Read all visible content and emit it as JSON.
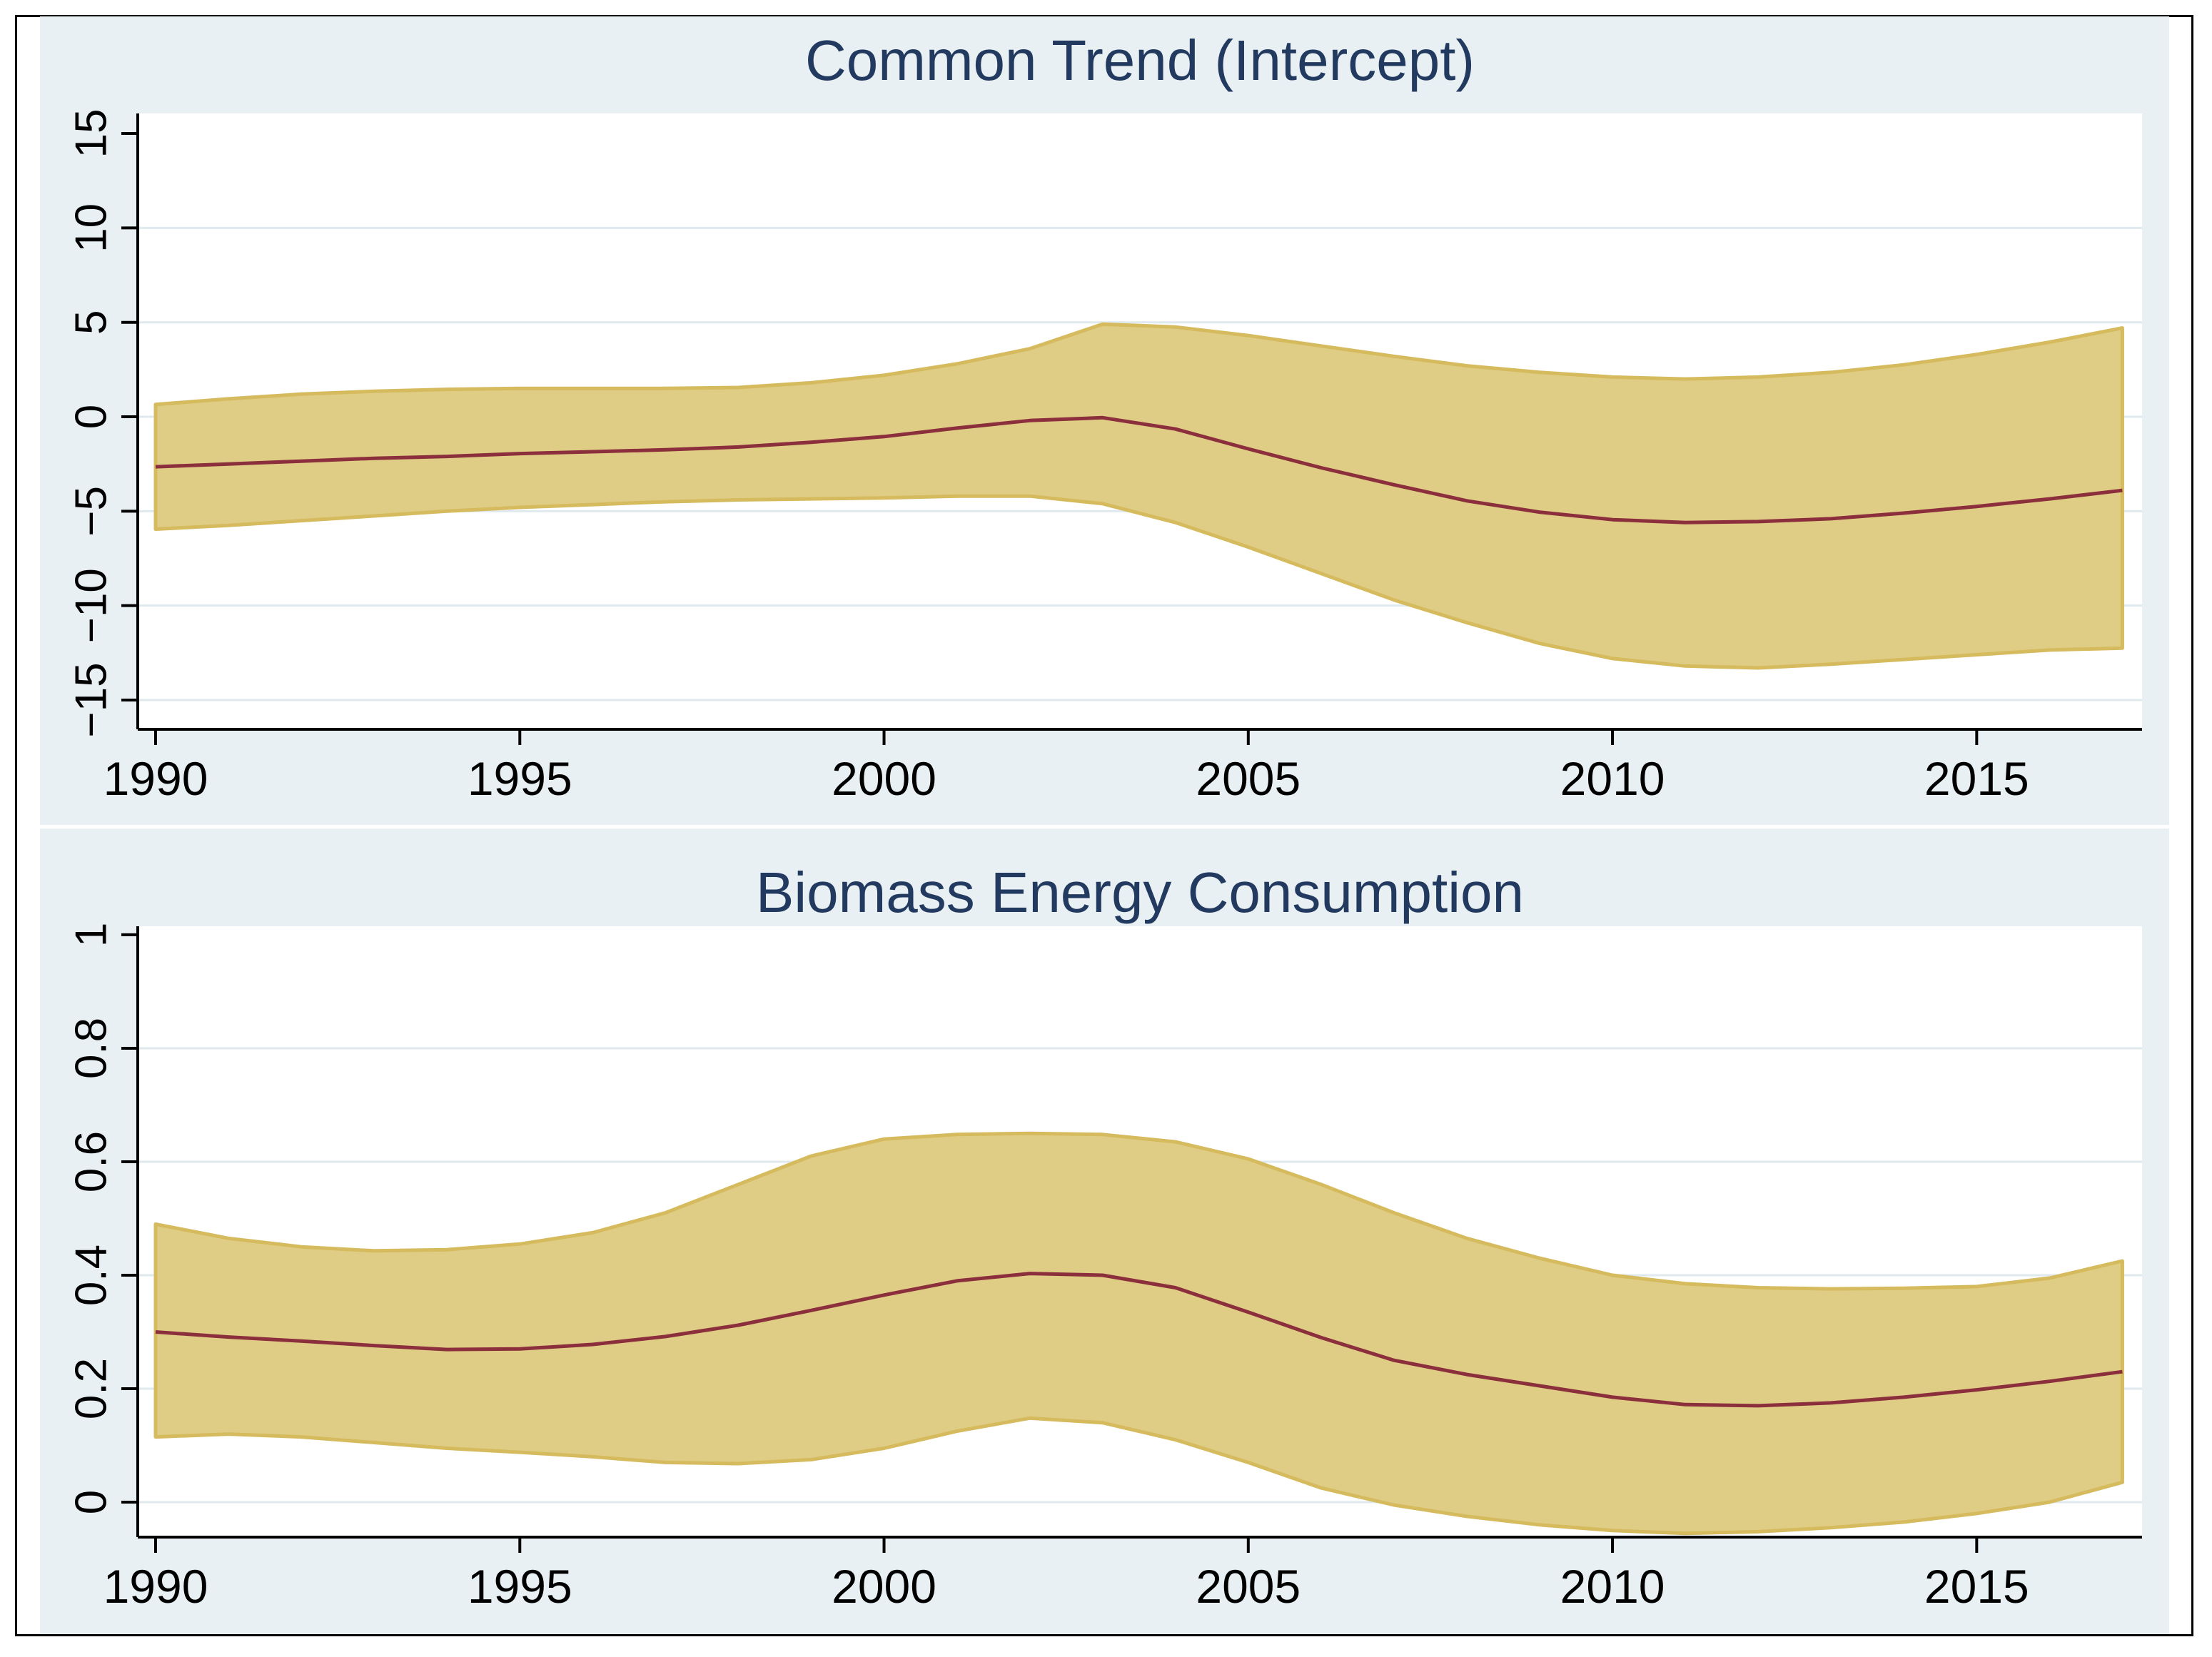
{
  "colors": {
    "page_bg": "#ffffff",
    "frame_border": "#000000",
    "panel_bg": "#e9f0f3",
    "plot_bg": "#ffffff",
    "gridline": "#dfe9ee",
    "axis": "#000000",
    "band_fill": "#e0cd85",
    "band_edge": "#d5ba5e",
    "mean_line": "#8b2f3d",
    "title_text": "#233a60",
    "tick_text": "#000000"
  },
  "chart_data": [
    {
      "type": "area",
      "title": "Common Trend (Intercept)",
      "xlabel": "",
      "ylabel": "",
      "legend": false,
      "grid": true,
      "x": [
        1990,
        1991,
        1992,
        1993,
        1994,
        1995,
        1996,
        1997,
        1998,
        1999,
        2000,
        2001,
        2002,
        2003,
        2004,
        2005,
        2006,
        2007,
        2008,
        2009,
        2010,
        2011,
        2012,
        2013,
        2014,
        2015,
        2016,
        2017
      ],
      "series": [
        {
          "name": "mean",
          "values": [
            -2.65,
            -2.5,
            -2.35,
            -2.2,
            -2.1,
            -1.95,
            -1.85,
            -1.75,
            -1.6,
            -1.35,
            -1.05,
            -0.6,
            -0.2,
            -0.05,
            -0.65,
            -1.7,
            -2.7,
            -3.6,
            -4.45,
            -5.05,
            -5.45,
            -5.6,
            -5.55,
            -5.4,
            -5.1,
            -4.75,
            -4.35,
            -3.9
          ]
        },
        {
          "name": "upper_ci",
          "values": [
            0.65,
            0.95,
            1.2,
            1.35,
            1.45,
            1.5,
            1.5,
            1.5,
            1.55,
            1.8,
            2.2,
            2.8,
            3.6,
            4.9,
            4.75,
            4.3,
            3.75,
            3.2,
            2.7,
            2.35,
            2.1,
            2.0,
            2.1,
            2.35,
            2.75,
            3.3,
            3.95,
            4.7
          ]
        },
        {
          "name": "lower_ci",
          "values": [
            -5.95,
            -5.75,
            -5.5,
            -5.25,
            -5.0,
            -4.8,
            -4.65,
            -4.5,
            -4.4,
            -4.35,
            -4.3,
            -4.2,
            -4.2,
            -4.6,
            -5.6,
            -6.9,
            -8.3,
            -9.7,
            -10.9,
            -12.0,
            -12.8,
            -13.2,
            -13.3,
            -13.1,
            -12.85,
            -12.6,
            -12.35,
            -12.25
          ]
        }
      ],
      "xlim": [
        1989.755,
        2017.27
      ],
      "ylim": [
        -16.55,
        16.06
      ],
      "x_tick_values": [
        1990,
        1995,
        2000,
        2005,
        2010,
        2015
      ],
      "x_tick_labels": [
        "1990",
        "1995",
        "2000",
        "2005",
        "2010",
        "2015"
      ],
      "y_tick_values": [
        15,
        10,
        5,
        0,
        -5,
        -10,
        -15
      ],
      "y_tick_labels": [
        "15",
        "10",
        "5",
        "0",
        "−5",
        "−10",
        "−15"
      ],
      "y_grid_values": [
        10,
        5,
        0,
        -5,
        -10,
        -15
      ]
    },
    {
      "type": "area",
      "title": "Biomass Energy Consumption",
      "xlabel": "",
      "ylabel": "",
      "legend": false,
      "grid": true,
      "x": [
        1990,
        1991,
        1992,
        1993,
        1994,
        1995,
        1996,
        1997,
        1998,
        1999,
        2000,
        2001,
        2002,
        2003,
        2004,
        2005,
        2006,
        2007,
        2008,
        2009,
        2010,
        2011,
        2012,
        2013,
        2014,
        2015,
        2016,
        2017
      ],
      "series": [
        {
          "name": "mean",
          "values": [
            0.3,
            0.291,
            0.284,
            0.276,
            0.269,
            0.27,
            0.278,
            0.292,
            0.312,
            0.338,
            0.365,
            0.39,
            0.403,
            0.4,
            0.378,
            0.335,
            0.29,
            0.25,
            0.225,
            0.205,
            0.185,
            0.172,
            0.17,
            0.175,
            0.185,
            0.198,
            0.213,
            0.23
          ]
        },
        {
          "name": "upper_ci",
          "values": [
            0.49,
            0.465,
            0.45,
            0.443,
            0.445,
            0.455,
            0.475,
            0.51,
            0.56,
            0.61,
            0.64,
            0.648,
            0.65,
            0.648,
            0.635,
            0.605,
            0.56,
            0.51,
            0.465,
            0.43,
            0.4,
            0.385,
            0.378,
            0.376,
            0.377,
            0.38,
            0.395,
            0.425
          ]
        },
        {
          "name": "lower_ci",
          "values": [
            0.115,
            0.12,
            0.115,
            0.105,
            0.095,
            0.088,
            0.08,
            0.07,
            0.068,
            0.075,
            0.095,
            0.125,
            0.148,
            0.14,
            0.11,
            0.07,
            0.025,
            -0.005,
            -0.025,
            -0.04,
            -0.05,
            -0.055,
            -0.052,
            -0.045,
            -0.035,
            -0.02,
            0.0,
            0.035
          ]
        }
      ],
      "xlim": [
        1989.755,
        2017.27
      ],
      "ylim": [
        -0.0616,
        1.015
      ],
      "x_tick_values": [
        1990,
        1995,
        2000,
        2005,
        2010,
        2015
      ],
      "x_tick_labels": [
        "1990",
        "1995",
        "2000",
        "2005",
        "2010",
        "2015"
      ],
      "y_tick_values": [
        1,
        0.8,
        0.6,
        0.4,
        0.2,
        0
      ],
      "y_tick_labels": [
        "1",
        "0.8",
        "0.6",
        "0.4",
        "0.2",
        "0"
      ],
      "y_grid_values": [
        0.8,
        0.6,
        0.4,
        0.2,
        0
      ]
    }
  ]
}
